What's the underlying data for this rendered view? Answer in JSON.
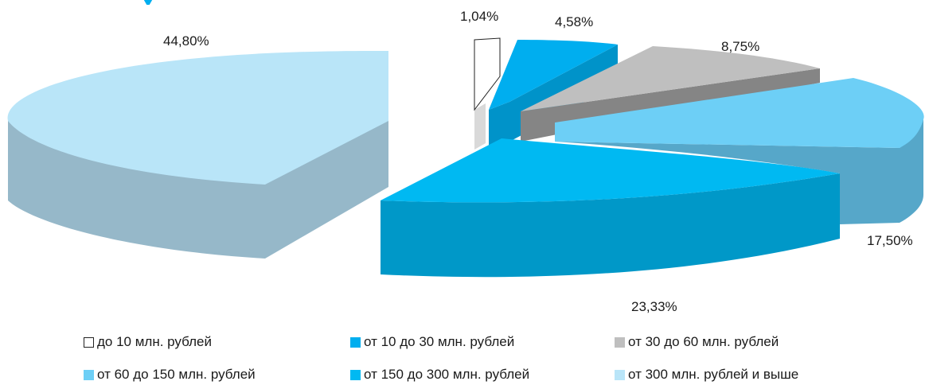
{
  "colors": {
    "s1_top": "#ffffff",
    "s1_side": "#d9d9d9",
    "s2_top": "#00aeef",
    "s2_side": "#0093c9",
    "s3_top": "#bfbfbf",
    "s3_side": "#858585",
    "s4_top": "#6dcff6",
    "s4_side": "#56a7c9",
    "s5_top": "#00b9f2",
    "s5_side": "#0098c8",
    "s6_top": "#b9e5f8",
    "s6_side": "#96b8c9"
  },
  "chart_data": {
    "type": "pie",
    "style": "3d-exploded",
    "categories": [
      "до 10 млн. рублей",
      "от 10 до 30 млн. рублей",
      "от 30 до 60 млн. рублей",
      "от 60 до 150 млн. рублей",
      "от 150 до 300 млн. рублей",
      "от 300 млн. рублей и выше"
    ],
    "values": [
      1.04,
      4.58,
      8.75,
      17.5,
      23.33,
      44.8
    ],
    "value_labels": [
      "1,04%",
      "4,58%",
      "8,75%",
      "17,50%",
      "23,33%",
      "44,80%"
    ],
    "legend": "bottom"
  }
}
